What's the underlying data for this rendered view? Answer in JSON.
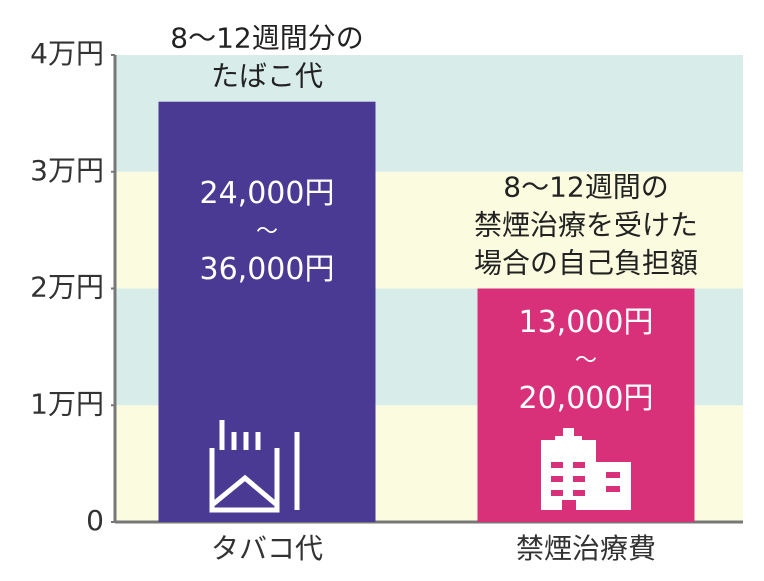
{
  "chart_data": {
    "type": "bar",
    "categories": [
      "タバコ代",
      "禁煙治療費"
    ],
    "values": [
      36000,
      20000
    ],
    "value_labels": [
      [
        "24,000円",
        "～",
        "36,000円"
      ],
      [
        "13,000円",
        "～",
        "20,000円"
      ]
    ],
    "annotations": [
      [
        "8～12週間分の",
        "たばこ代"
      ],
      [
        "8～12週間の",
        "禁煙治療を受けた",
        "場合の自己負担額"
      ]
    ],
    "colors": [
      "#4b3a93",
      "#d8317a"
    ],
    "band_colors": [
      "#fbfbe0",
      "#d8ecea"
    ],
    "ylim": [
      0,
      40000
    ],
    "yticks": [
      0,
      {
        "value": 10000,
        "label": "1万円"
      },
      {
        "value": 20000,
        "label": "2万円"
      },
      {
        "value": 30000,
        "label": "3万円"
      },
      {
        "value": 40000,
        "label": "4万円"
      }
    ]
  }
}
